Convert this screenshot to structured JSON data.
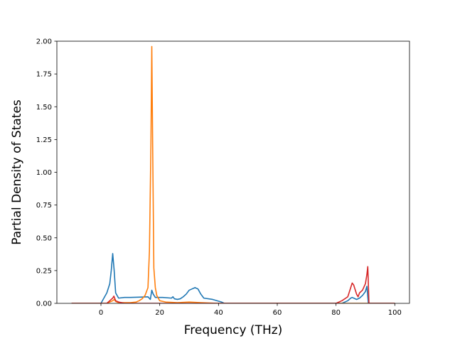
{
  "chart_data": {
    "type": "line",
    "title": "",
    "xlabel": "Frequency (THz)",
    "ylabel": "Partial Density of States",
    "xlim": [
      -15,
      105
    ],
    "ylim": [
      0,
      2.0
    ],
    "x_ticks": [
      0,
      20,
      40,
      60,
      80,
      100
    ],
    "x_tick_labels": [
      "0",
      "20",
      "40",
      "60",
      "80",
      "100"
    ],
    "y_ticks": [
      0,
      0.25,
      0.5,
      0.75,
      1.0,
      1.25,
      1.5,
      1.75,
      2.0
    ],
    "y_tick_labels": [
      "0.00",
      "0.25",
      "0.50",
      "0.75",
      "1.00",
      "1.25",
      "1.50",
      "1.75",
      "2.00"
    ],
    "grid": false,
    "legend": "none",
    "series": [
      {
        "color": "#1f77b4",
        "points": [
          [
            -10,
            0
          ],
          [
            0,
            0
          ],
          [
            1,
            0.04
          ],
          [
            2,
            0.08
          ],
          [
            3,
            0.15
          ],
          [
            3.5,
            0.25
          ],
          [
            4,
            0.38
          ],
          [
            4.5,
            0.25
          ],
          [
            5,
            0.08
          ],
          [
            6,
            0.04
          ],
          [
            8,
            0.045
          ],
          [
            10,
            0.045
          ],
          [
            13,
            0.047
          ],
          [
            16,
            0.05
          ],
          [
            16.8,
            0.03
          ],
          [
            17.3,
            0.1
          ],
          [
            17.8,
            0.07
          ],
          [
            18.5,
            0.045
          ],
          [
            21,
            0.045
          ],
          [
            24,
            0.04
          ],
          [
            24.5,
            0.05
          ],
          [
            25,
            0.035
          ],
          [
            26,
            0.03
          ],
          [
            27,
            0.035
          ],
          [
            28,
            0.05
          ],
          [
            29,
            0.07
          ],
          [
            30,
            0.1
          ],
          [
            31,
            0.11
          ],
          [
            32,
            0.12
          ],
          [
            33,
            0.11
          ],
          [
            34,
            0.07
          ],
          [
            35,
            0.04
          ],
          [
            38,
            0.03
          ],
          [
            41,
            0.01
          ],
          [
            42,
            0
          ],
          [
            82,
            0
          ],
          [
            84,
            0.02
          ],
          [
            85,
            0.04
          ],
          [
            85.5,
            0.045
          ],
          [
            86,
            0.04
          ],
          [
            87,
            0.03
          ],
          [
            88,
            0.04
          ],
          [
            89,
            0.06
          ],
          [
            90,
            0.09
          ],
          [
            90.5,
            0.13
          ],
          [
            91,
            0
          ],
          [
            100,
            0
          ]
        ]
      },
      {
        "color": "#ff7f0e",
        "points": [
          [
            -10,
            0
          ],
          [
            2,
            0
          ],
          [
            3,
            0.01
          ],
          [
            4,
            0.02
          ],
          [
            4.5,
            0.03
          ],
          [
            5,
            0.015
          ],
          [
            6,
            0.005
          ],
          [
            10,
            0.005
          ],
          [
            12,
            0.01
          ],
          [
            13,
            0.02
          ],
          [
            14,
            0.035
          ],
          [
            15,
            0.06
          ],
          [
            16,
            0.12
          ],
          [
            16.5,
            0.4
          ],
          [
            17,
            1.2
          ],
          [
            17.3,
            1.96
          ],
          [
            17.6,
            1.2
          ],
          [
            18,
            0.27
          ],
          [
            18.5,
            0.12
          ],
          [
            19,
            0.06
          ],
          [
            20,
            0.02
          ],
          [
            22,
            0.01
          ],
          [
            26,
            0.005
          ],
          [
            30,
            0.01
          ],
          [
            34,
            0.005
          ],
          [
            40,
            0
          ],
          [
            100,
            0
          ]
        ]
      },
      {
        "color": "#d62728",
        "points": [
          [
            -10,
            0
          ],
          [
            2,
            0
          ],
          [
            3,
            0.02
          ],
          [
            4,
            0.04
          ],
          [
            4.4,
            0.055
          ],
          [
            5,
            0.02
          ],
          [
            6,
            0.01
          ],
          [
            7,
            0.005
          ],
          [
            8,
            0
          ],
          [
            80,
            0
          ],
          [
            82,
            0.02
          ],
          [
            84,
            0.05
          ],
          [
            85,
            0.12
          ],
          [
            85.5,
            0.155
          ],
          [
            86,
            0.14
          ],
          [
            87,
            0.07
          ],
          [
            87.5,
            0.05
          ],
          [
            88,
            0.08
          ],
          [
            89,
            0.1
          ],
          [
            90,
            0.15
          ],
          [
            90.5,
            0.22
          ],
          [
            90.8,
            0.28
          ],
          [
            91,
            0.15
          ],
          [
            91.2,
            0
          ],
          [
            100,
            0
          ]
        ]
      }
    ]
  }
}
